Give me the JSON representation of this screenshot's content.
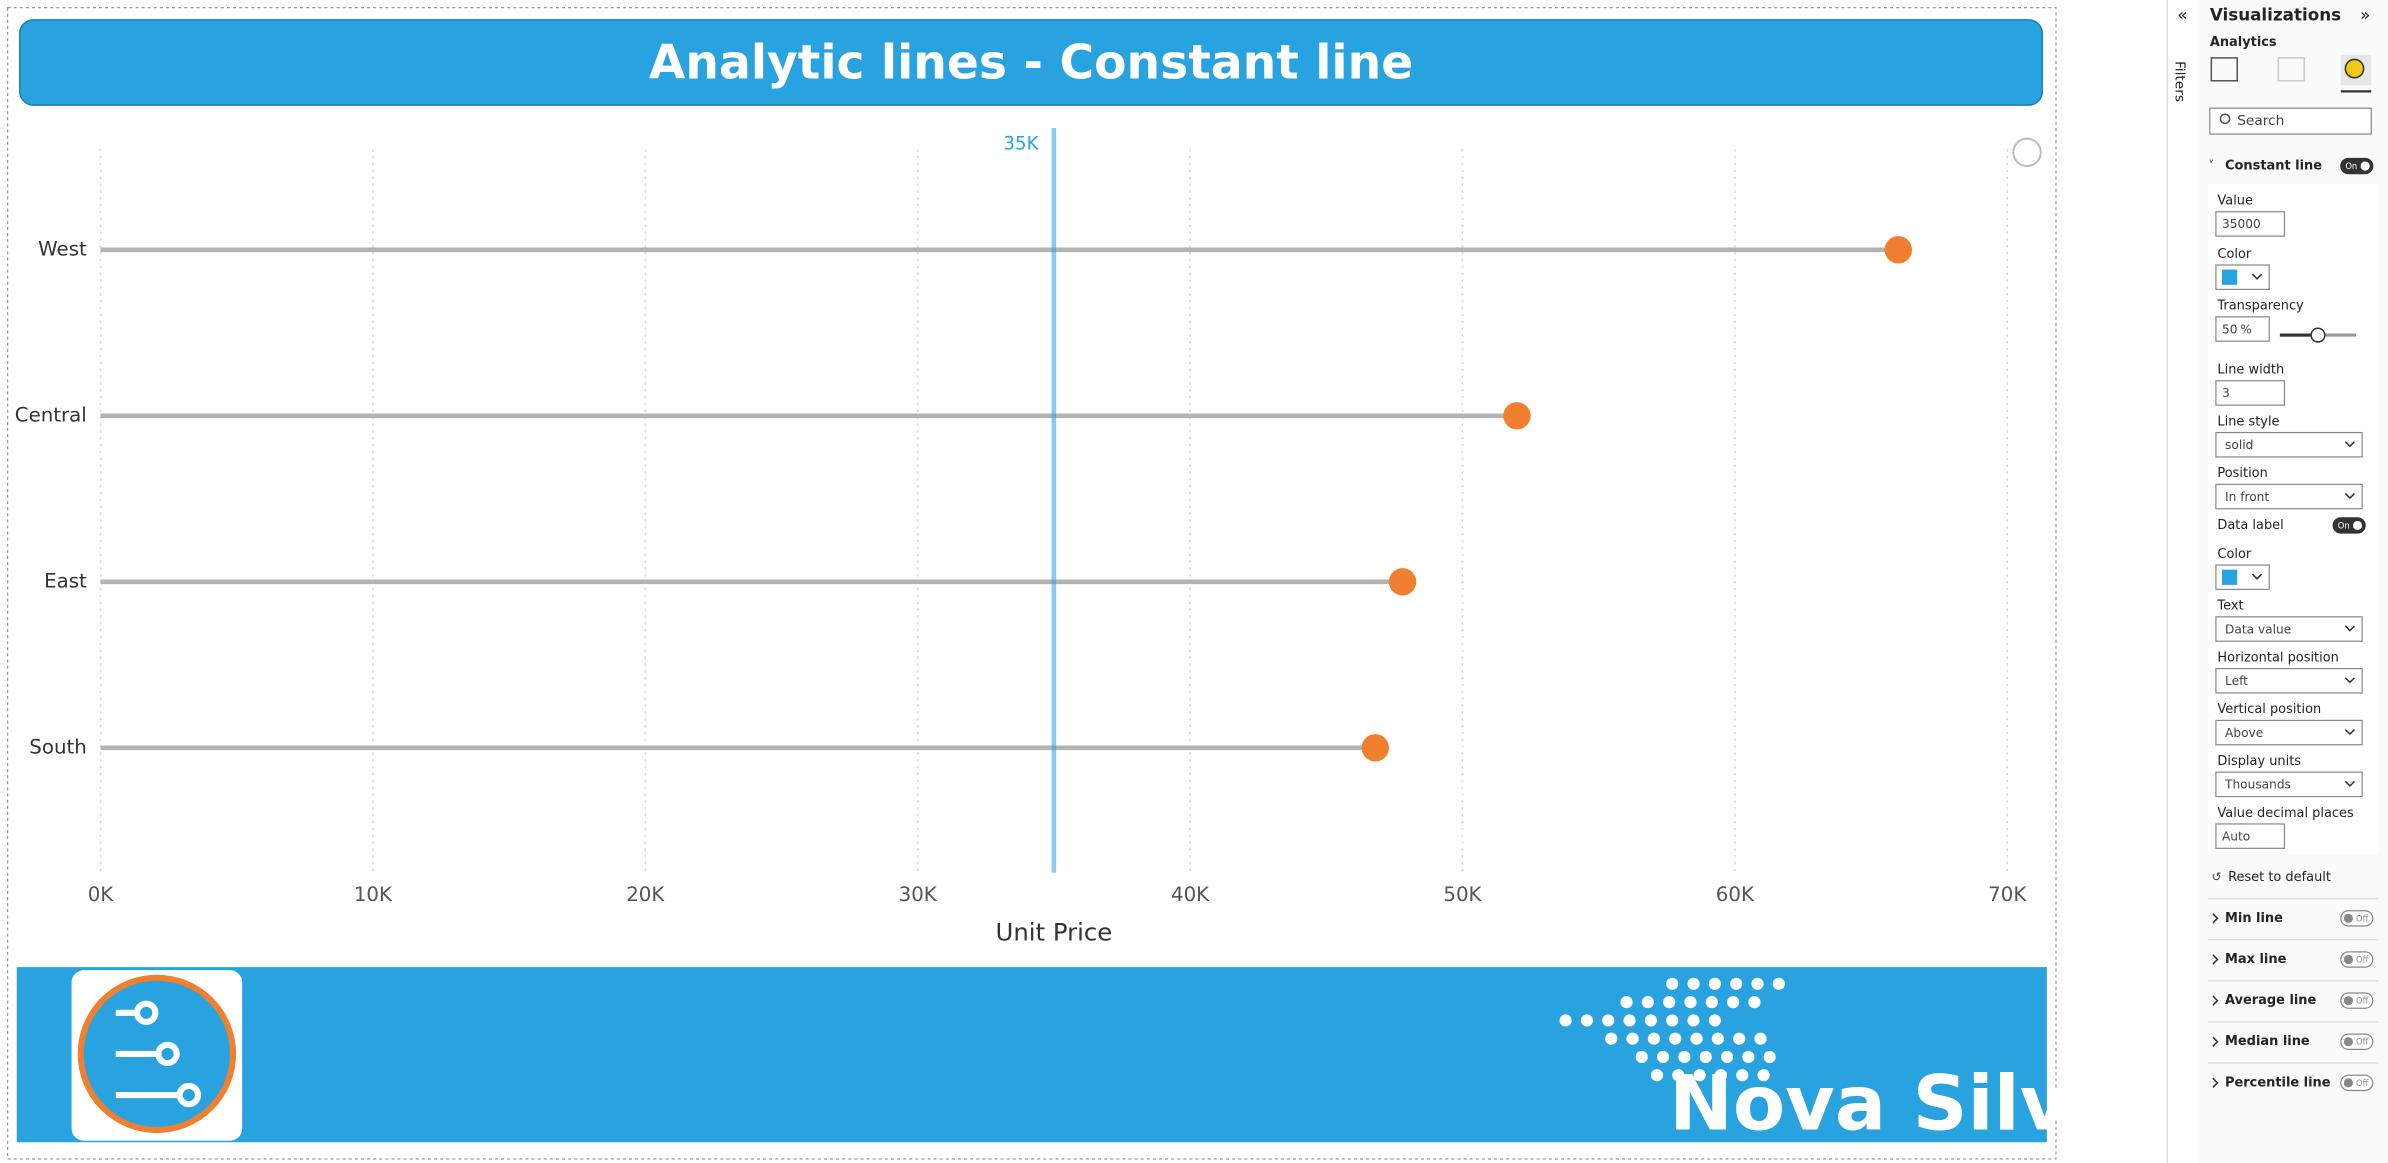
{
  "report_title": "Analytic lines - Constant line",
  "chart_data": {
    "type": "lollipop",
    "categories": [
      "West",
      "Central",
      "East",
      "South"
    ],
    "values": [
      66000,
      52000,
      47800,
      46800
    ],
    "stem_color": "#b3b3b3",
    "color": "#f07f2f",
    "xlim": [
      0,
      70000
    ],
    "xticks": [
      {
        "value": 0,
        "label": "0K"
      },
      {
        "value": 10000,
        "label": "10K"
      },
      {
        "value": 20000,
        "label": "20K"
      },
      {
        "value": 30000,
        "label": "30K"
      },
      {
        "value": 40000,
        "label": "40K"
      },
      {
        "value": 50000,
        "label": "50K"
      },
      {
        "value": 60000,
        "label": "60K"
      },
      {
        "value": 70000,
        "label": "70K"
      }
    ],
    "x_label": "Unit Price",
    "grid": true,
    "constant_line": {
      "value": 35000,
      "label": "35K",
      "color": "#29a3e0"
    }
  },
  "footer": {
    "brand": "Nova Silva"
  },
  "panel": {
    "title": "Visualizations",
    "tab": "Analytics",
    "filters": "Filters",
    "search": "Search",
    "section": "Constant line",
    "section_state": "On",
    "value_label": "Value",
    "value": "35000",
    "color_label": "Color",
    "transparency_label": "Transparency",
    "transparency": "50",
    "percent": "%",
    "line_width_label": "Line width",
    "line_width": "3",
    "line_style_label": "Line style",
    "line_style": "solid",
    "position_label": "Position",
    "position": "In front",
    "data_label_label": "Data label",
    "data_label_state": "On",
    "label_color_label": "Color",
    "text_label": "Text",
    "text": "Data value",
    "hpos_label": "Horizontal position",
    "hpos": "Left",
    "vpos_label": "Vertical position",
    "vpos": "Above",
    "units_label": "Display units",
    "units": "Thousands",
    "decimals_label": "Value decimal places",
    "decimals": "Auto",
    "reset": "Reset to default",
    "other_lines": [
      {
        "name": "Min line",
        "state": "Off"
      },
      {
        "name": "Max line",
        "state": "Off"
      },
      {
        "name": "Average line",
        "state": "Off"
      },
      {
        "name": "Median line",
        "state": "Off"
      },
      {
        "name": "Percentile line",
        "state": "Off"
      }
    ]
  }
}
